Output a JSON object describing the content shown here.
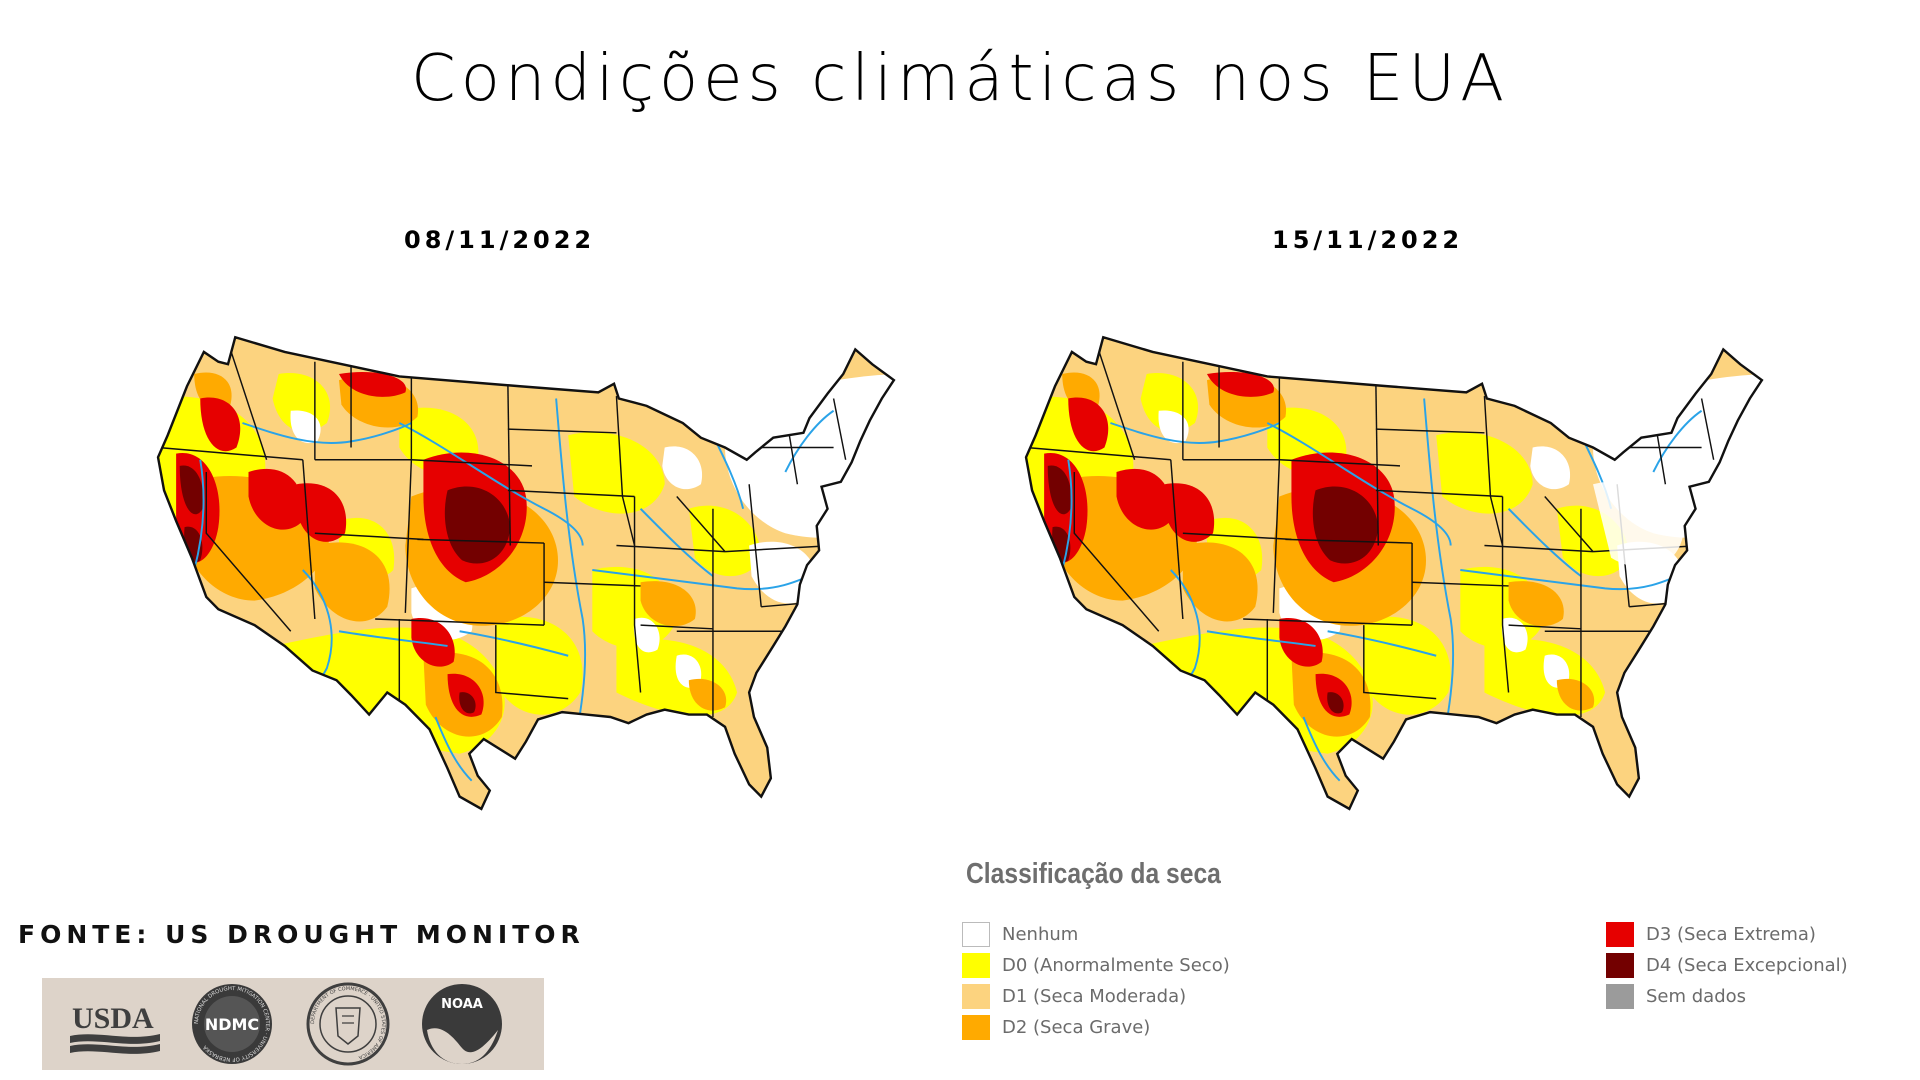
{
  "title": "Condições climáticas nos EUA",
  "maps": [
    {
      "date": "08/11/2022"
    },
    {
      "date": "15/11/2022"
    }
  ],
  "legend": {
    "title": "Classificação da seca",
    "items": [
      {
        "label": "Nenhum",
        "color": "#ffffff"
      },
      {
        "label": "D0 (Anormalmente Seco)",
        "color": "#ffff00"
      },
      {
        "label": "D1 (Seca Moderada)",
        "color": "#fcd37f"
      },
      {
        "label": "D2 (Seca Grave)",
        "color": "#ffaa00"
      },
      {
        "label": "D3 (Seca Extrema)",
        "color": "#e60000"
      },
      {
        "label": "D4 (Seca Excepcional)",
        "color": "#730000"
      },
      {
        "label": "Sem dados",
        "color": "#9b9b9b"
      }
    ]
  },
  "source": "FONTE: US DROUGHT MONITOR",
  "logos": {
    "usda": "USDA",
    "ndmc": "NDMC",
    "ndmc_ring": "NATIONAL DROUGHT MITIGATION CENTER · UNIVERSITY OF NEBRASKA",
    "doc_ring": "DEPARTMENT OF COMMERCE · UNITED STATES OF AMERICA",
    "noaa": "NOAA"
  }
}
